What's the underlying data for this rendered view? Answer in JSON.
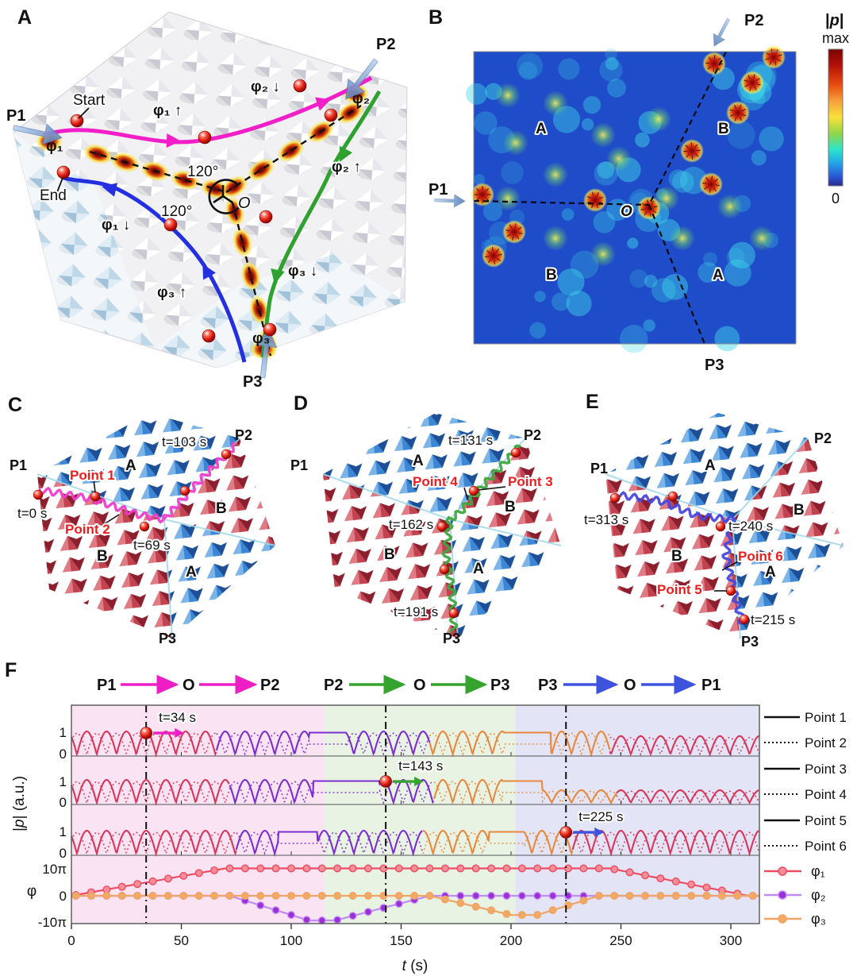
{
  "panelA": {
    "letter": "A",
    "p1": "P1",
    "p2": "P2",
    "p3": "P3",
    "start": "Start",
    "end": "End",
    "origin": "O",
    "angle_top": "120°",
    "angle_left": "120°",
    "phi1_in": "φ₁",
    "phi1_up": "φ₁ ↑",
    "phi1_down": "φ₁ ↓",
    "phi2_in": "φ₂",
    "phi2_down": "φ₂ ↓",
    "phi2_up": "φ₂ ↑",
    "phi3_in": "φ₃",
    "phi3_up": "φ₃ ↑",
    "phi3_down": "φ₃ ↓"
  },
  "panelB": {
    "letter": "B",
    "p1": "P1",
    "p2": "P2",
    "p3": "P3",
    "origin": "O",
    "region_a_top": "A",
    "region_b_top": "B",
    "region_b_bottom": "B",
    "region_a_bottom": "A",
    "colorbar": {
      "title_pre": "|",
      "title_sym": "p",
      "title_post": "|",
      "max": "max",
      "min": "0"
    }
  },
  "panelC": {
    "letter": "C",
    "p1": "P1",
    "p2": "P2",
    "p3": "P3",
    "region_a_top": "A",
    "region_b_right": "B",
    "region_b_left": "B",
    "region_a_bottom": "A",
    "point1": "Point 1",
    "point2": "Point 2",
    "t0": "t=0 s",
    "t69": "t=69 s",
    "t103": "t=103 s",
    "path_color": "#F03CCB"
  },
  "panelD": {
    "letter": "D",
    "p1": "P1",
    "p2": "P2",
    "p3": "P3",
    "region_a_top": "A",
    "region_b_right": "B",
    "region_b_left": "B",
    "region_a_bottom": "A",
    "point3": "Point 3",
    "point4": "Point 4",
    "t131": "t=131 s",
    "t162": "t=162 s",
    "t191": "t=191 s",
    "path_color": "#3FA83F"
  },
  "panelE": {
    "letter": "E",
    "p1": "P1",
    "p2": "P2",
    "p3": "P3",
    "region_a_top": "A",
    "region_b_right": "B",
    "region_b_left": "B",
    "region_a_bottom": "A",
    "point5": "Point 5",
    "point6": "Point 6",
    "t313": "t=313 s",
    "t240": "t=240 s",
    "t215": "t=215 s",
    "path_color": "#4848E0"
  },
  "panelF": {
    "letter": "F",
    "routes": [
      {
        "from": "P1",
        "via": "O",
        "to": "P2",
        "color": "#ED1EC6"
      },
      {
        "from": "P2",
        "via": "O",
        "to": "P3",
        "color": "#35A42F"
      },
      {
        "from": "P3",
        "via": "O",
        "to": "P1",
        "color": "#3D52DD"
      }
    ],
    "legend_points": [
      "Point 1",
      "Point 2",
      "Point 3",
      "Point 4",
      "Point 5",
      "Point 6"
    ],
    "legend_phases": [
      {
        "label": "φ₁",
        "color": "#EF4B63"
      },
      {
        "label": "φ₂",
        "color": "#B75CF0"
      },
      {
        "label": "φ₃",
        "color": "#F0A467"
      }
    ],
    "ylabel_p_pre": "|",
    "ylabel_p_sym": "p",
    "ylabel_p_post": "| (a.u.)",
    "ylabel_phase": "φ",
    "xlabel_sym": "t",
    "xlabel_rest": " (s)",
    "ytick_one": "1",
    "ytick_zero": "0",
    "ytick_10pi": "10π",
    "ytick_0pi": "0",
    "ytick_m10pi": "-10π"
  },
  "chart_data": {
    "type": "line",
    "xlabel": "t (s)",
    "x_range": [
      0,
      313
    ],
    "x_ticks": [
      0,
      50,
      100,
      150,
      200,
      250,
      300
    ],
    "background_zones": [
      {
        "route": "P1-O-P2",
        "t_start": 0,
        "t_end": 115,
        "color": "#FAE3F3"
      },
      {
        "route": "P2-O-P3",
        "t_start": 115,
        "t_end": 202,
        "color": "#E9F3E4"
      },
      {
        "route": "P3-O-P1",
        "t_start": 202,
        "t_end": 313,
        "color": "#E3E5F6"
      }
    ],
    "event_times_s": [
      34,
      143,
      225
    ],
    "p_subplots": [
      {
        "series": [
          "Point 1",
          "Point 2"
        ],
        "y_ticks": [
          0,
          1
        ],
        "oscillation_period_s": 9,
        "pauses_s": [
          [
            108,
            125
          ],
          [
            197,
            218
          ]
        ],
        "amplitude_changes": [
          {
            "after_s": 245,
            "amplitude": 0.8
          }
        ],
        "color_segments": [
          {
            "until_s": 66,
            "color": "#D9365B"
          },
          {
            "until_s": 163,
            "color": "#7B2FD0"
          },
          {
            "until_s": 245,
            "color": "#E8883C"
          },
          {
            "until_s": 313,
            "color": "#D9365B"
          }
        ],
        "event": {
          "t_s": 34,
          "label": "t=34 s",
          "arrow_color": "#ED1EC6"
        }
      },
      {
        "series": [
          "Point 3",
          "Point 4"
        ],
        "y_ticks": [
          0,
          1
        ],
        "oscillation_period_s": 9,
        "pauses_s": [
          [
            110,
            140
          ],
          [
            196,
            214
          ]
        ],
        "amplitude_changes": [
          {
            "after_s": 214,
            "amplitude": 0.55
          }
        ],
        "color_segments": [
          {
            "until_s": 72,
            "color": "#D9365B"
          },
          {
            "until_s": 165,
            "color": "#7B2FD0"
          },
          {
            "until_s": 248,
            "color": "#E8883C"
          },
          {
            "until_s": 313,
            "color": "#D9365B"
          }
        ],
        "event": {
          "t_s": 143,
          "label": "t=143 s",
          "arrow_color": "#35A42F"
        }
      },
      {
        "series": [
          "Point 5",
          "Point 6"
        ],
        "y_ticks": [
          0,
          1
        ],
        "oscillation_period_s": 9,
        "pauses_s": [
          [
            94,
            112
          ],
          [
            190,
            206
          ]
        ],
        "amplitude_changes": [],
        "color_segments": [
          {
            "until_s": 75,
            "color": "#D9365B"
          },
          {
            "until_s": 160,
            "color": "#7B2FD0"
          },
          {
            "until_s": 228,
            "color": "#E8883C"
          },
          {
            "until_s": 313,
            "color": "#D9365B"
          }
        ],
        "event": {
          "t_s": 225,
          "label": "t=225 s",
          "arrow_color": "#3D52DD"
        }
      }
    ],
    "phase_series": [
      {
        "name": "φ₁",
        "color": "#EF4B63",
        "marker_fill": "#F58E97",
        "keypoints_t_s_value_pi": [
          [
            0,
            0
          ],
          [
            70,
            10
          ],
          [
            245,
            10
          ],
          [
            308,
            0
          ],
          [
            313,
            0
          ]
        ]
      },
      {
        "name": "φ₂",
        "color": "#C18CF2",
        "marker_fill": "#9B30D9",
        "keypoints_t_s_value_pi": [
          [
            0,
            0
          ],
          [
            72,
            0
          ],
          [
            108,
            -9
          ],
          [
            120,
            -9
          ],
          [
            163,
            0
          ],
          [
            313,
            0
          ]
        ]
      },
      {
        "name": "φ₃",
        "color": "#F0A467",
        "marker_fill": "#F2A963",
        "keypoints_t_s_value_pi": [
          [
            0,
            0
          ],
          [
            163,
            0
          ],
          [
            200,
            -7
          ],
          [
            212,
            -7
          ],
          [
            240,
            0
          ],
          [
            313,
            0
          ]
        ]
      }
    ],
    "phase_y_ticks": [
      "10π",
      "0",
      "-10π"
    ],
    "marker_interval_s": 7
  }
}
